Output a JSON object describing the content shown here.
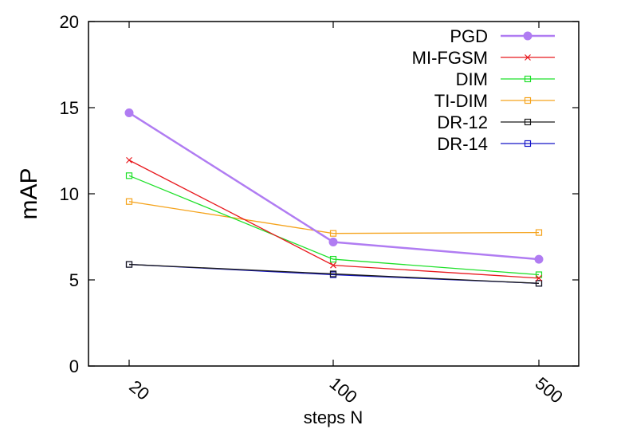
{
  "chart_data": {
    "type": "line",
    "title": "",
    "xlabel": "steps N",
    "ylabel": "mAP",
    "categories": [
      "20",
      "100",
      "500"
    ],
    "ylim": [
      0,
      20
    ],
    "yticks": [
      "0",
      "5",
      "10",
      "15",
      "20"
    ],
    "grid": false,
    "legend_position": "top-right",
    "series": [
      {
        "name": "PGD",
        "color": "#b07cf2",
        "marker": "filled-circle",
        "values": [
          14.7,
          7.2,
          6.2
        ]
      },
      {
        "name": "MI-FGSM",
        "color": "#e8191e",
        "marker": "cross",
        "values": [
          11.95,
          5.85,
          5.1
        ]
      },
      {
        "name": "DIM",
        "color": "#1fe02a",
        "marker": "open-square",
        "values": [
          11.05,
          6.2,
          5.3
        ]
      },
      {
        "name": "TI-DIM",
        "color": "#f5a31c",
        "marker": "open-square",
        "values": [
          9.55,
          7.7,
          7.75
        ]
      },
      {
        "name": "DR-12",
        "color": "#1a1a1a",
        "marker": "open-square",
        "values": [
          5.9,
          5.35,
          4.8
        ]
      },
      {
        "name": "DR-14",
        "color": "#1414c8",
        "marker": "open-square",
        "values": [
          5.9,
          5.3,
          4.8
        ]
      }
    ]
  }
}
